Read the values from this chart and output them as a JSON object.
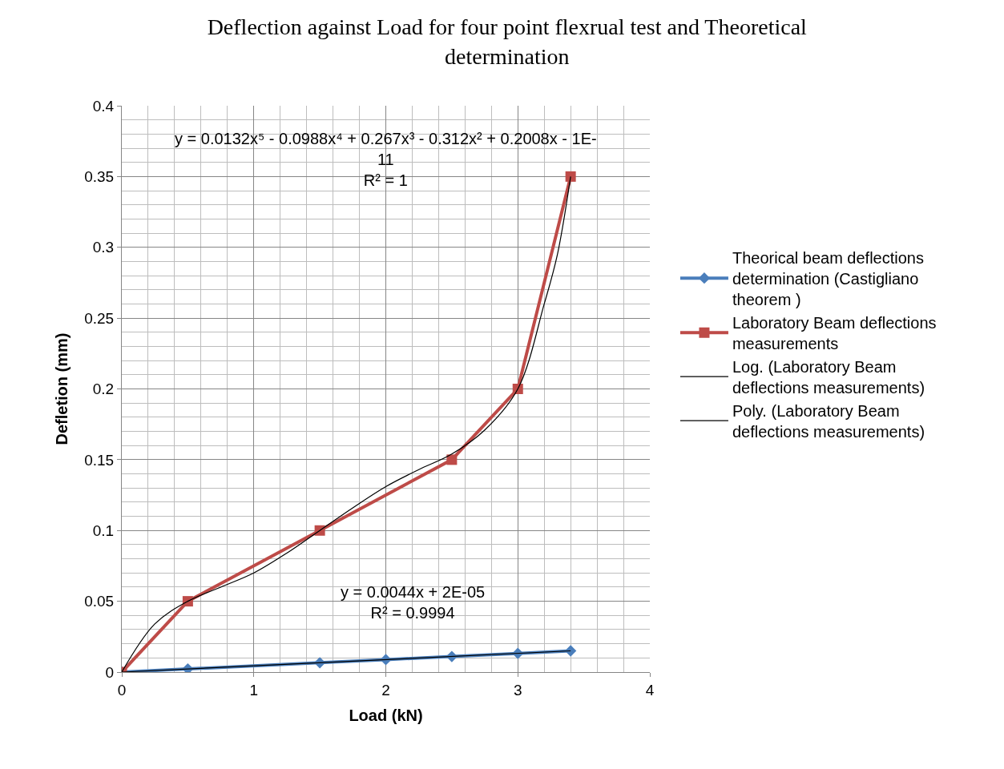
{
  "chart_data": {
    "type": "line",
    "title": "Deflection against Load for four point flexrual test and Theoretical determination",
    "xlabel": "Load (kN)",
    "ylabel": "Defletion (mm)",
    "xlim": [
      0,
      4
    ],
    "xticks": [
      0,
      1,
      2,
      3,
      4
    ],
    "ylim": [
      0,
      0.4
    ],
    "yticks": [
      0,
      0.05,
      0.1,
      0.15,
      0.2,
      0.25,
      0.3,
      0.35,
      0.4
    ],
    "grid": true,
    "legend": "right",
    "series": [
      {
        "name": "Theorical beam deflections determination (Castigliano theorem )",
        "color": "#4a7ebb",
        "marker": "diamond",
        "x": [
          0,
          0.5,
          1.5,
          2,
          2.5,
          3,
          3.4
        ],
        "values": [
          0,
          0.0022,
          0.0066,
          0.0088,
          0.011,
          0.0132,
          0.015
        ]
      },
      {
        "name": "Laboratory Beam deflections measurements",
        "color": "#be4b48",
        "marker": "square",
        "x": [
          0,
          0.5,
          1.5,
          2.5,
          3,
          3.4
        ],
        "values": [
          0,
          0.05,
          0.1,
          0.15,
          0.2,
          0.35
        ]
      },
      {
        "name": "Log. (Laboratory Beam deflections measurements)",
        "color": "#000000",
        "marker": "none",
        "x": [
          0,
          3.4
        ],
        "values": [
          0,
          0.015
        ]
      },
      {
        "name": "Poly. (Laboratory Beam deflections measurements)",
        "color": "#000000",
        "marker": "none",
        "x": [
          0,
          0.25,
          0.5,
          0.75,
          1,
          1.25,
          1.5,
          1.75,
          2,
          2.25,
          2.5,
          2.75,
          3,
          3.2,
          3.3,
          3.4
        ],
        "values": [
          0,
          0.034,
          0.05,
          0.06,
          0.07,
          0.084,
          0.1,
          0.116,
          0.131,
          0.143,
          0.154,
          0.171,
          0.2,
          0.26,
          0.295,
          0.35
        ]
      }
    ],
    "annotations": [
      "y = 0.0132x⁵ - 0.0988x⁴ + 0.267x³ - 0.312x² + 0.2008x - 1E-\n11\nR² = 1",
      "y = 0.0044x + 2E-05\nR² = 0.9994"
    ]
  }
}
